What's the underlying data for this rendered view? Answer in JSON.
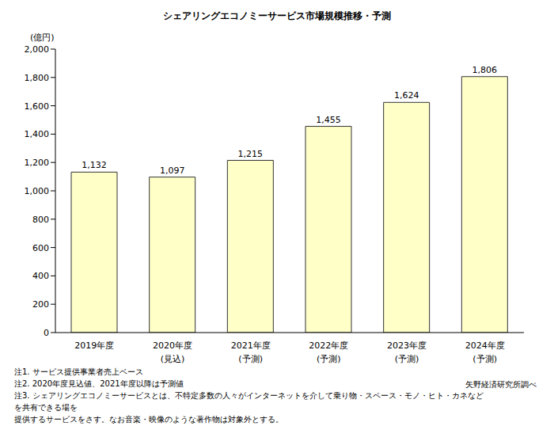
{
  "chart_data": {
    "type": "bar",
    "title": "シェアリングエコノミーサービス市場規模推移・予測",
    "ylabel": "(億円)",
    "categories": [
      "2019年度",
      "2020年度\n(見込)",
      "2021年度\n(予測)",
      "2022年度\n(予測)",
      "2023年度\n(予測)",
      "2024年度\n(予測)"
    ],
    "values": [
      1132,
      1097,
      1215,
      1455,
      1624,
      1806
    ],
    "value_labels": [
      "1,132",
      "1,097",
      "1,215",
      "1,455",
      "1,624",
      "1,806"
    ],
    "data_labels": true,
    "color": "#ffffc8",
    "ylim": [
      0,
      2000
    ],
    "yticks": [
      0,
      200,
      400,
      600,
      800,
      {
        "value": 1000,
        "label": "1,000"
      },
      {
        "value": 1200,
        "label": "1,200"
      },
      {
        "value": 1400,
        "label": "1,400"
      },
      {
        "value": 1600,
        "label": "1,600"
      },
      {
        "value": 1800,
        "label": "1,800"
      },
      {
        "value": 2000,
        "label": "2,000"
      }
    ],
    "grid": false,
    "notes": [
      "注1. サービス提供事業者売上ベース",
      "注2. 2020年度見込値、2021年度以降は予測値",
      "注3. シェアリングエコノミーサービスとは、不特定多数の人々がインターネットを介して乗り物・スペース・モノ・ヒト・カネなどを共有できる場を\n提供するサービスをさす。なお音楽・映像のような著作物は対象外とする。"
    ],
    "source": "矢野経済研究所調べ"
  }
}
